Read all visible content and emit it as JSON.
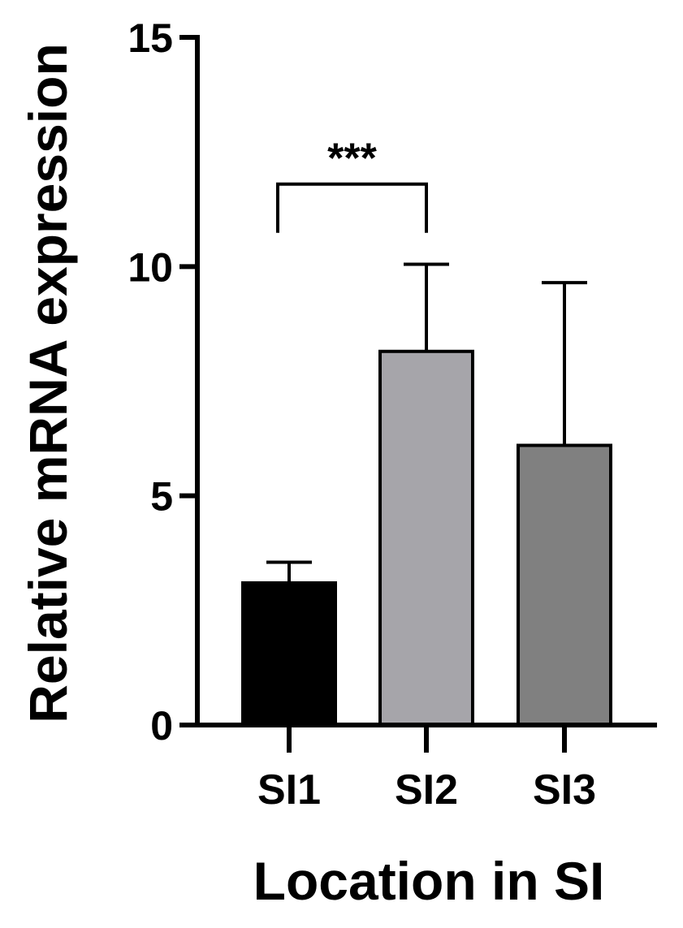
{
  "chart_data": {
    "type": "bar",
    "categories": [
      "SI1",
      "SI2",
      "SI3"
    ],
    "values": [
      3.1,
      8.15,
      6.1
    ],
    "error_upper": [
      3.55,
      10.05,
      9.65
    ],
    "colors": [
      "#000000",
      "#a6a5aa",
      "#808080"
    ],
    "xlabel": "Location in SI",
    "ylabel": "Relative mRNA expression",
    "ylim": [
      0,
      15
    ],
    "yticks": [
      0,
      5,
      10,
      15
    ],
    "grid": false,
    "annotations": [
      {
        "type": "significance",
        "from": "SI1",
        "to": "SI2",
        "text": "***",
        "y": 11.8
      }
    ]
  }
}
